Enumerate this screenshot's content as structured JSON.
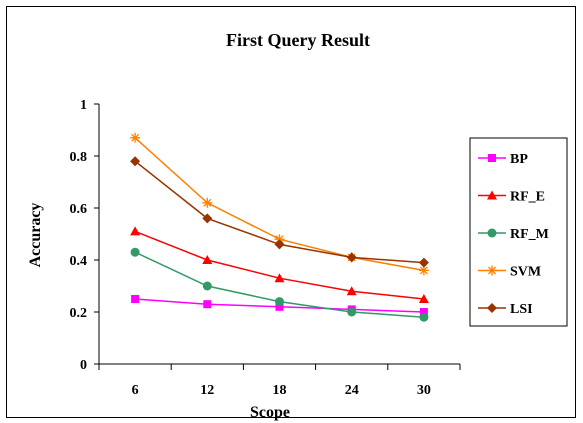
{
  "chart_data": {
    "type": "line",
    "title": "First Query Result",
    "xlabel": "Scope",
    "ylabel": "Accuracy",
    "x": [
      6,
      12,
      18,
      24,
      30
    ],
    "ylim": [
      0,
      1
    ],
    "yticks": [
      0,
      0.2,
      0.4,
      0.6,
      0.8,
      1
    ],
    "ytick_labels": [
      "0",
      "0.2",
      "0.4",
      "0.6",
      "0.8",
      "1"
    ],
    "grid": false,
    "legend_position": "right",
    "series": [
      {
        "name": "BP",
        "color": "#ff00ff",
        "marker": "square",
        "values": [
          0.25,
          0.23,
          0.22,
          0.21,
          0.2
        ]
      },
      {
        "name": "RF_E",
        "color": "#ff0000",
        "marker": "triangle",
        "values": [
          0.51,
          0.4,
          0.33,
          0.28,
          0.25
        ]
      },
      {
        "name": "RF_M",
        "color": "#339966",
        "marker": "circle",
        "values": [
          0.43,
          0.3,
          0.24,
          0.2,
          0.18
        ]
      },
      {
        "name": "SVM",
        "color": "#ff8000",
        "marker": "star",
        "values": [
          0.87,
          0.62,
          0.48,
          0.41,
          0.36
        ]
      },
      {
        "name": "LSI",
        "color": "#993300",
        "marker": "diamond",
        "values": [
          0.78,
          0.56,
          0.46,
          0.41,
          0.39
        ]
      }
    ]
  }
}
